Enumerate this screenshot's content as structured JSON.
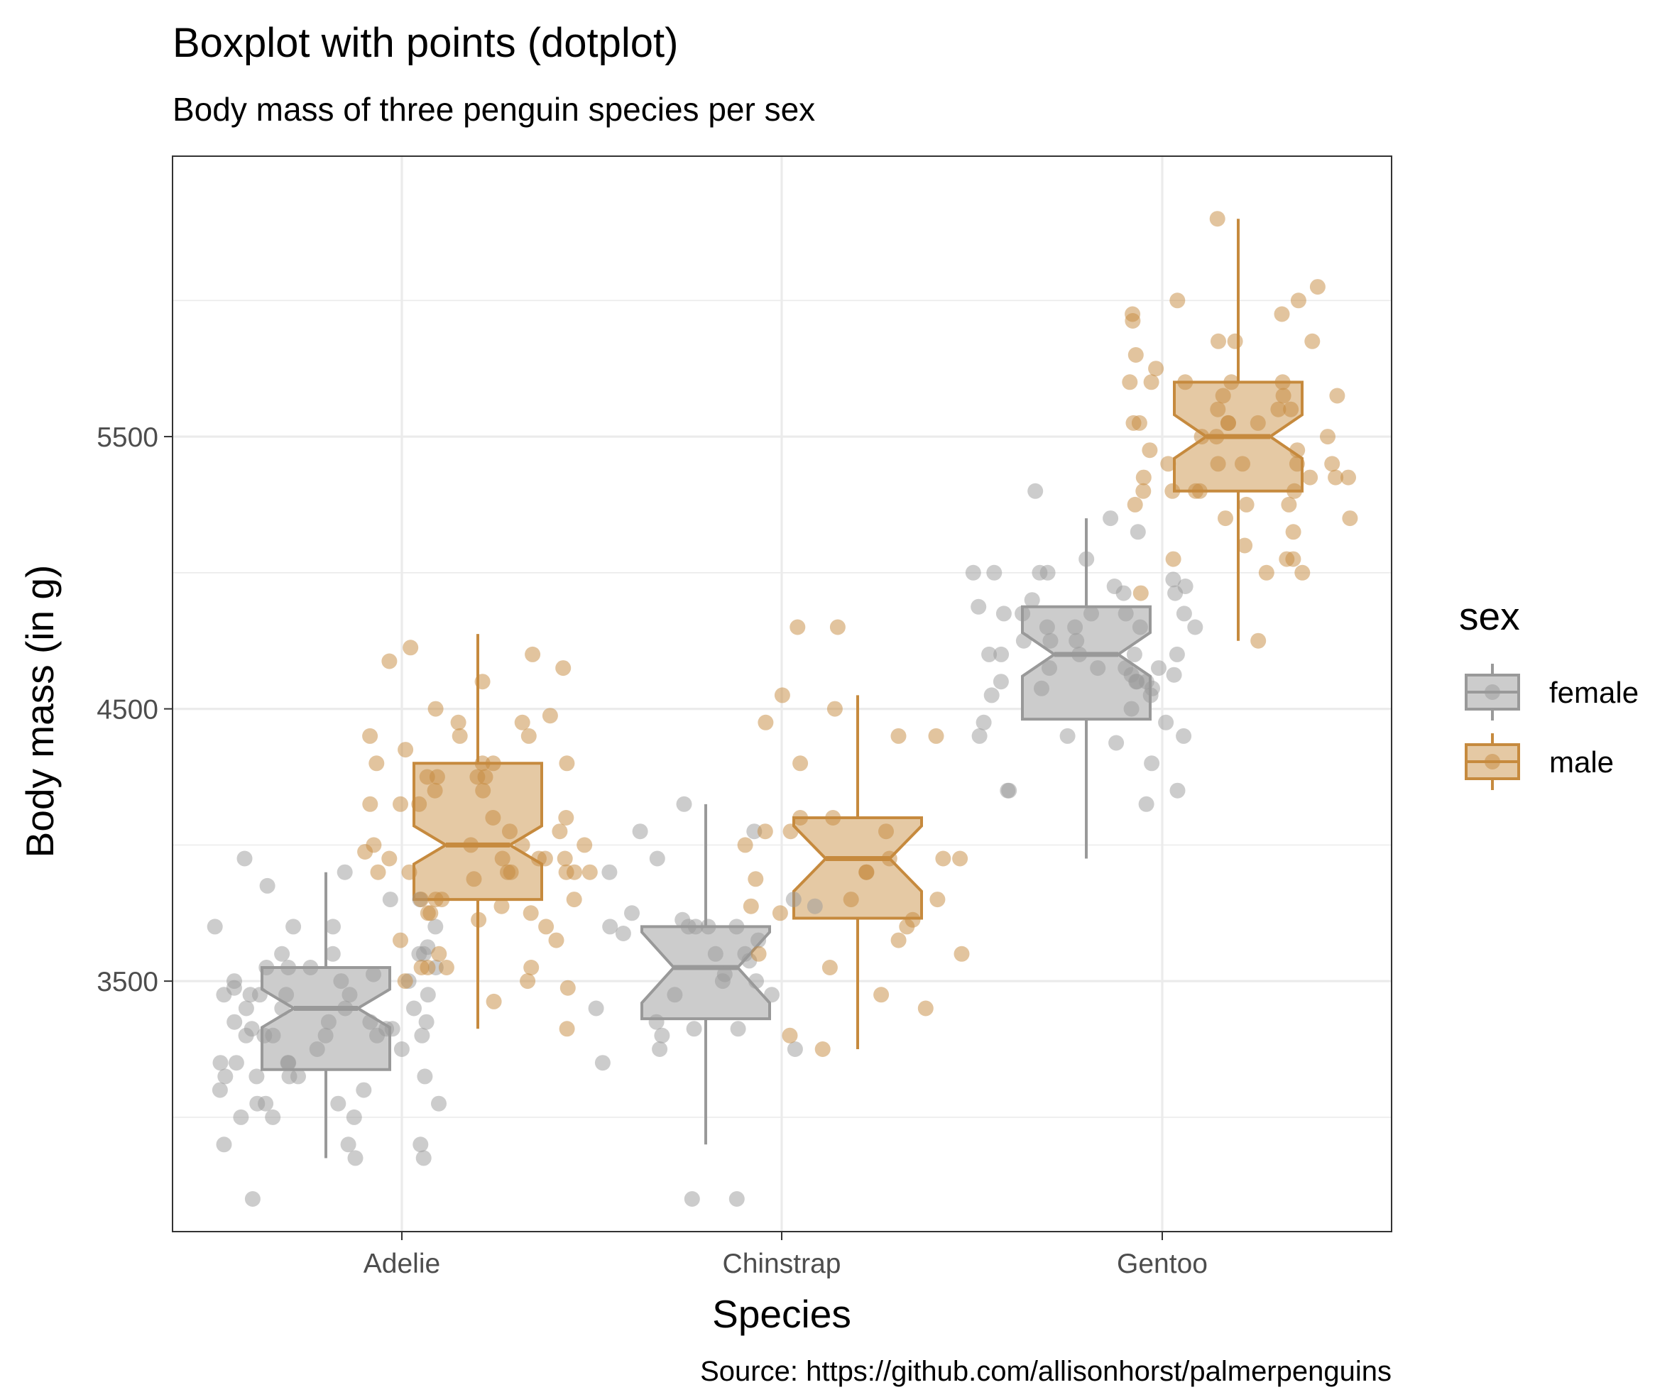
{
  "chart_data": {
    "type": "boxplot",
    "title": "Boxplot with points (dotplot)",
    "subtitle": "Body mass of three penguin species per sex",
    "xlabel": "Species",
    "ylabel": "Body mass (in g)",
    "caption": "Source: https://github.com/allisonhorst/palmerpenguins",
    "categories": [
      "Adelie",
      "Chinstrap",
      "Gentoo"
    ],
    "ylim": [
      2580,
      6530
    ],
    "yticks": [
      3500,
      4500,
      5500
    ],
    "ytick_labels": [
      "3500",
      "4500",
      "5500"
    ],
    "grid": true,
    "notched": true,
    "legend": {
      "title": "sex",
      "position": "right",
      "entries": [
        {
          "label": "female",
          "color": "#999999"
        },
        {
          "label": "male",
          "color": "#c68a3e"
        }
      ]
    },
    "series": [
      {
        "name": "female",
        "color": "#999999",
        "fill": "#cccccc",
        "boxes": [
          {
            "category": "Adelie",
            "min": 2850,
            "q1": 3175,
            "median": 3400,
            "q3": 3550,
            "max": 3900,
            "notch_low": 3330,
            "notch_high": 3470
          },
          {
            "category": "Chinstrap",
            "min": 2900,
            "q1": 3362,
            "median": 3550,
            "q3": 3700,
            "max": 4150,
            "notch_low": 3420,
            "notch_high": 3680
          },
          {
            "category": "Gentoo",
            "min": 3950,
            "q1": 4462,
            "median": 4700,
            "q3": 4875,
            "max": 5200,
            "notch_low": 4620,
            "notch_high": 4780
          }
        ],
        "points": {
          "Adelie": [
            3475,
            3250,
            3625,
            3200,
            3700,
            3450,
            3325,
            3400,
            3800,
            3800,
            3200,
            3150,
            3300,
            3325,
            3550,
            3300,
            3150,
            3100,
            3000,
            3450,
            3500,
            3450,
            2900,
            3550,
            2850,
            3150,
            3600,
            2850,
            3350,
            3050,
            3600,
            3550,
            3700,
            3450,
            3600,
            2900,
            3300,
            3400,
            3700,
            3200,
            3350,
            3900,
            3850,
            2700,
            3050,
            3400,
            3600,
            3525,
            3450,
            3300,
            3150,
            2900,
            3450,
            3300,
            3000,
            3700,
            3150,
            3500,
            3325,
            3100,
            3350,
            3200,
            3000,
            3250,
            3500,
            3950,
            3050,
            3350,
            3400,
            3550,
            3300,
            3050
          ],
          "Chinstrap": [
            3500,
            3900,
            3650,
            3525,
            3725,
            3950,
            3250,
            3750,
            4150,
            3700,
            3800,
            3775,
            3700,
            4050,
            3575,
            4050,
            3300,
            3700,
            3450,
            3600,
            3350,
            3450,
            3250,
            3325,
            3675,
            3325,
            3500,
            3200,
            3400,
            2700,
            2700,
            3700,
            3600,
            3700
          ],
          "Gentoo": [
            4500,
            4450,
            4550,
            4800,
            4400,
            4650,
            4650,
            4200,
            4150,
            4800,
            5000,
            4400,
            5000,
            4600,
            5300,
            4575,
            4400,
            4800,
            4300,
            4600,
            4750,
            4625,
            4200,
            4875,
            4700,
            4925,
            4625,
            4850,
            4975,
            4700,
            4575,
            5000,
            4650,
            4375,
            4925,
            4850,
            4950,
            4850,
            4200,
            4750,
            4600,
            4850,
            5050,
            4700,
            4750,
            4600,
            4450,
            5000,
            4850,
            4800,
            4900,
            5150,
            4700,
            4950,
            5200,
            4650,
            4550,
            4700
          ]
        }
      },
      {
        "name": "male",
        "color": "#c68a3e",
        "fill": "#e5c9a4",
        "boxes": [
          {
            "category": "Adelie",
            "min": 3325,
            "q1": 3800,
            "median": 4000,
            "q3": 4300,
            "max": 4775,
            "notch_low": 3930,
            "notch_high": 4070
          },
          {
            "category": "Chinstrap",
            "min": 3250,
            "q1": 3731,
            "median": 3950,
            "q3": 4100,
            "max": 4550,
            "notch_low": 3830,
            "notch_high": 4070
          },
          {
            "category": "Gentoo",
            "min": 4750,
            "q1": 5300,
            "median": 5500,
            "q3": 5700,
            "max": 6300,
            "notch_low": 5420,
            "notch_high": 5580
          }
        ],
        "points": {
          "Adelie": [
            3750,
            3650,
            4675,
            3800,
            4400,
            4500,
            4200,
            3600,
            3950,
            3800,
            3550,
            3950,
            3900,
            3900,
            4150,
            3950,
            4650,
            3900,
            4400,
            4600,
            3425,
            4150,
            4300,
            4050,
            3700,
            3800,
            3750,
            4400,
            4050,
            3950,
            4100,
            4450,
            3900,
            4150,
            4250,
            3900,
            4000,
            4700,
            4200,
            3550,
            3800,
            3950,
            4300,
            4450,
            4300,
            4350,
            4100,
            4725,
            4250,
            3550,
            3900,
            3775,
            3325,
            3500,
            3875,
            4000,
            4300,
            4000,
            3500,
            4475,
            3900,
            3975,
            4250,
            3475,
            3725,
            3650,
            4250,
            3750,
            4000,
            3550
          ],
          "Chinstrap": [
            3900,
            3650,
            3725,
            3750,
            3700,
            3800,
            4550,
            4800,
            4400,
            4050,
            3950,
            3300,
            4450,
            4300,
            3550,
            4400,
            3250,
            3800,
            3775,
            3950,
            4100,
            3400,
            4100,
            3900,
            3600,
            3450,
            4050,
            4500,
            4050,
            3875,
            3950,
            3600,
            4000,
            4800
          ],
          "Gentoo": [
            5700,
            5700,
            5400,
            5200,
            5150,
            5550,
            5850,
            5850,
            6300,
            5350,
            5700,
            5050,
            5100,
            5650,
            5550,
            5250,
            6050,
            5400,
            5250,
            5350,
            5700,
            4750,
            5550,
            5400,
            5300,
            5300,
            5000,
            5050,
            5000,
            5550,
            5300,
            5650,
            5700,
            5800,
            6000,
            5950,
            5450,
            5350,
            5600,
            5300,
            5550,
            5400,
            5650,
            5200,
            5925,
            5250,
            5600,
            5500,
            5500,
            5950,
            5500,
            5850,
            6000,
            5750,
            5400,
            5450,
            5600,
            5350,
            4925,
            5300,
            5050
          ]
        }
      }
    ]
  }
}
